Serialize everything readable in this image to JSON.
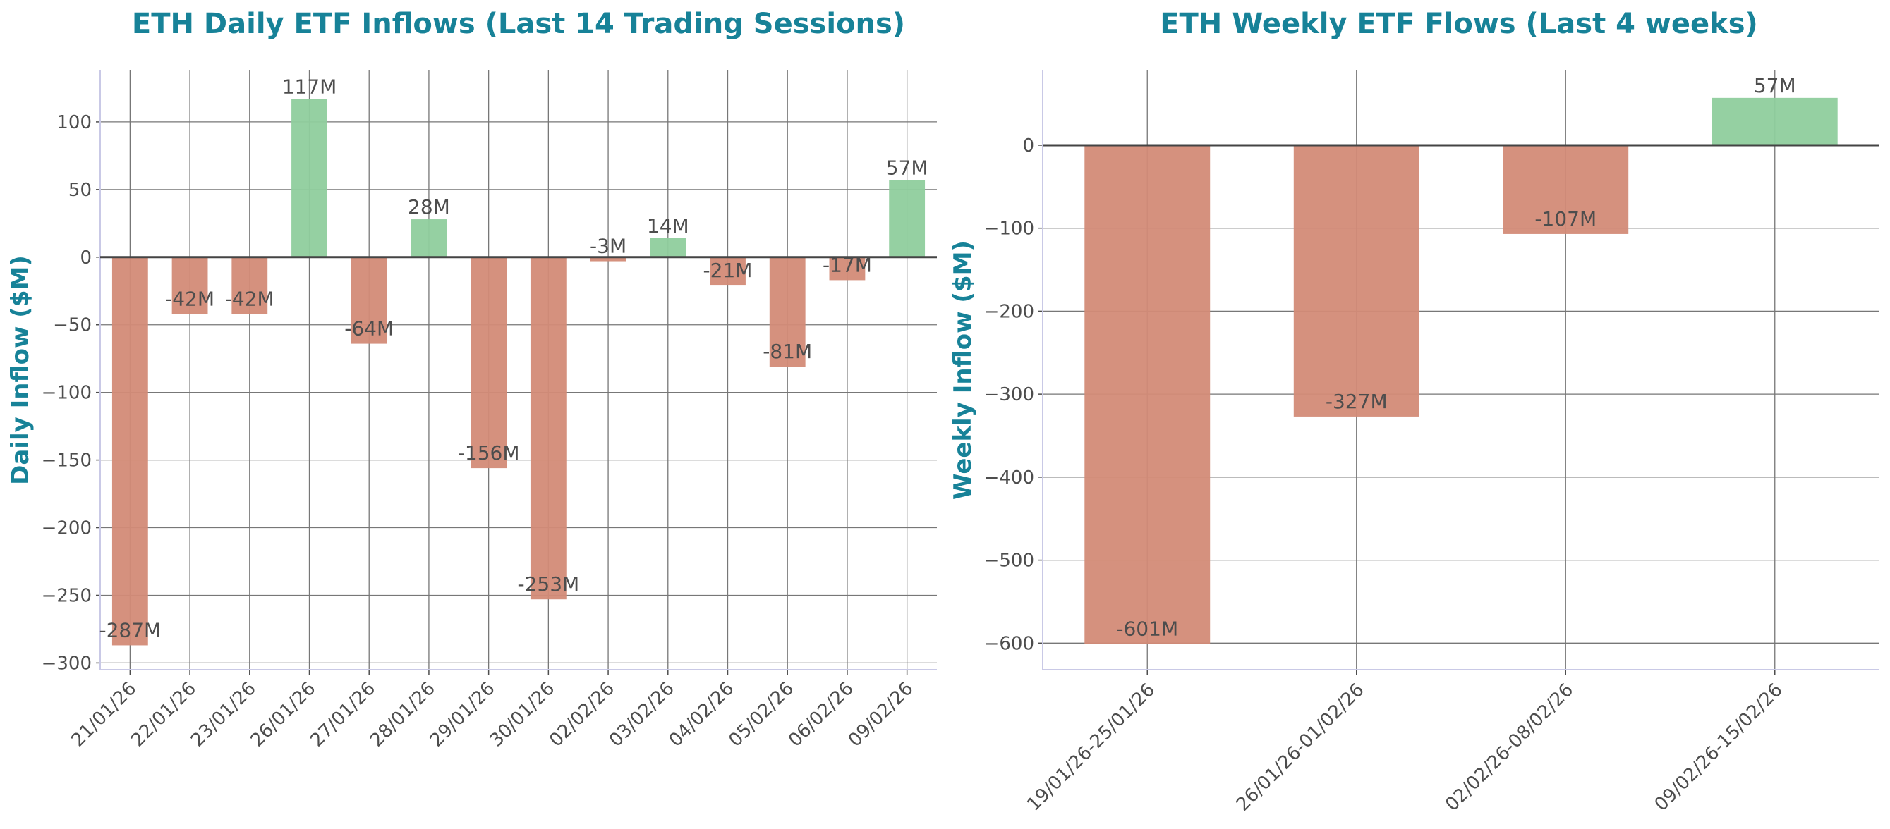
{
  "chart_data": [
    {
      "type": "bar",
      "title": "ETH Daily ETF Inflows (Last 14 Trading Sessions)",
      "xlabel": "",
      "ylabel": "Daily Inflow ($M)",
      "categories": [
        "21/01/26",
        "22/01/26",
        "23/01/26",
        "26/01/26",
        "27/01/26",
        "28/01/26",
        "29/01/26",
        "30/01/26",
        "02/02/26",
        "03/02/26",
        "04/02/26",
        "05/02/26",
        "06/02/26",
        "09/02/26"
      ],
      "values": [
        -287,
        -42,
        -42,
        117,
        -64,
        28,
        -156,
        -253,
        -3,
        14,
        -21,
        -81,
        -17,
        57
      ],
      "data_labels": [
        "-287M",
        "-42M",
        "-42M",
        "117M",
        "-64M",
        "28M",
        "-156M",
        "-253M",
        "-3M",
        "14M",
        "-21M",
        "-81M",
        "-17M",
        "57M"
      ],
      "yticks": [
        -300,
        -250,
        -200,
        -150,
        -100,
        -50,
        0,
        50,
        100
      ],
      "ytick_labels": [
        "−300",
        "−250",
        "−200",
        "−150",
        "−100",
        "−50",
        "0",
        "50",
        "100"
      ],
      "ylim": [
        -305,
        138
      ],
      "grid": true,
      "colors": {
        "positive": "#8fcd9d",
        "negative": "#d38b77",
        "title": "#178298",
        "label": "#4d4d4d",
        "grid": "#777777",
        "zero_line": "#444444",
        "spine": "#c9c9e6"
      }
    },
    {
      "type": "bar",
      "title": "ETH Weekly ETF Flows (Last 4 weeks)",
      "xlabel": "",
      "ylabel": "Weekly Inflow ($M)",
      "categories": [
        "19/01/26-25/01/26",
        "26/01/26-01/02/26",
        "02/02/26-08/02/26",
        "09/02/26-15/02/26"
      ],
      "values": [
        -601,
        -327,
        -107,
        57
      ],
      "data_labels": [
        "-601M",
        "-327M",
        "-107M",
        "57M"
      ],
      "yticks": [
        -600,
        -500,
        -400,
        -300,
        -200,
        -100,
        0
      ],
      "ytick_labels": [
        "−600",
        "−500",
        "−400",
        "−300",
        "−200",
        "−100",
        "0"
      ],
      "ylim": [
        -632,
        90
      ],
      "grid": true,
      "colors": {
        "positive": "#8fcd9d",
        "negative": "#d38b77",
        "title": "#178298",
        "label": "#4d4d4d",
        "grid": "#777777",
        "zero_line": "#444444",
        "spine": "#c9c9e6"
      }
    }
  ]
}
